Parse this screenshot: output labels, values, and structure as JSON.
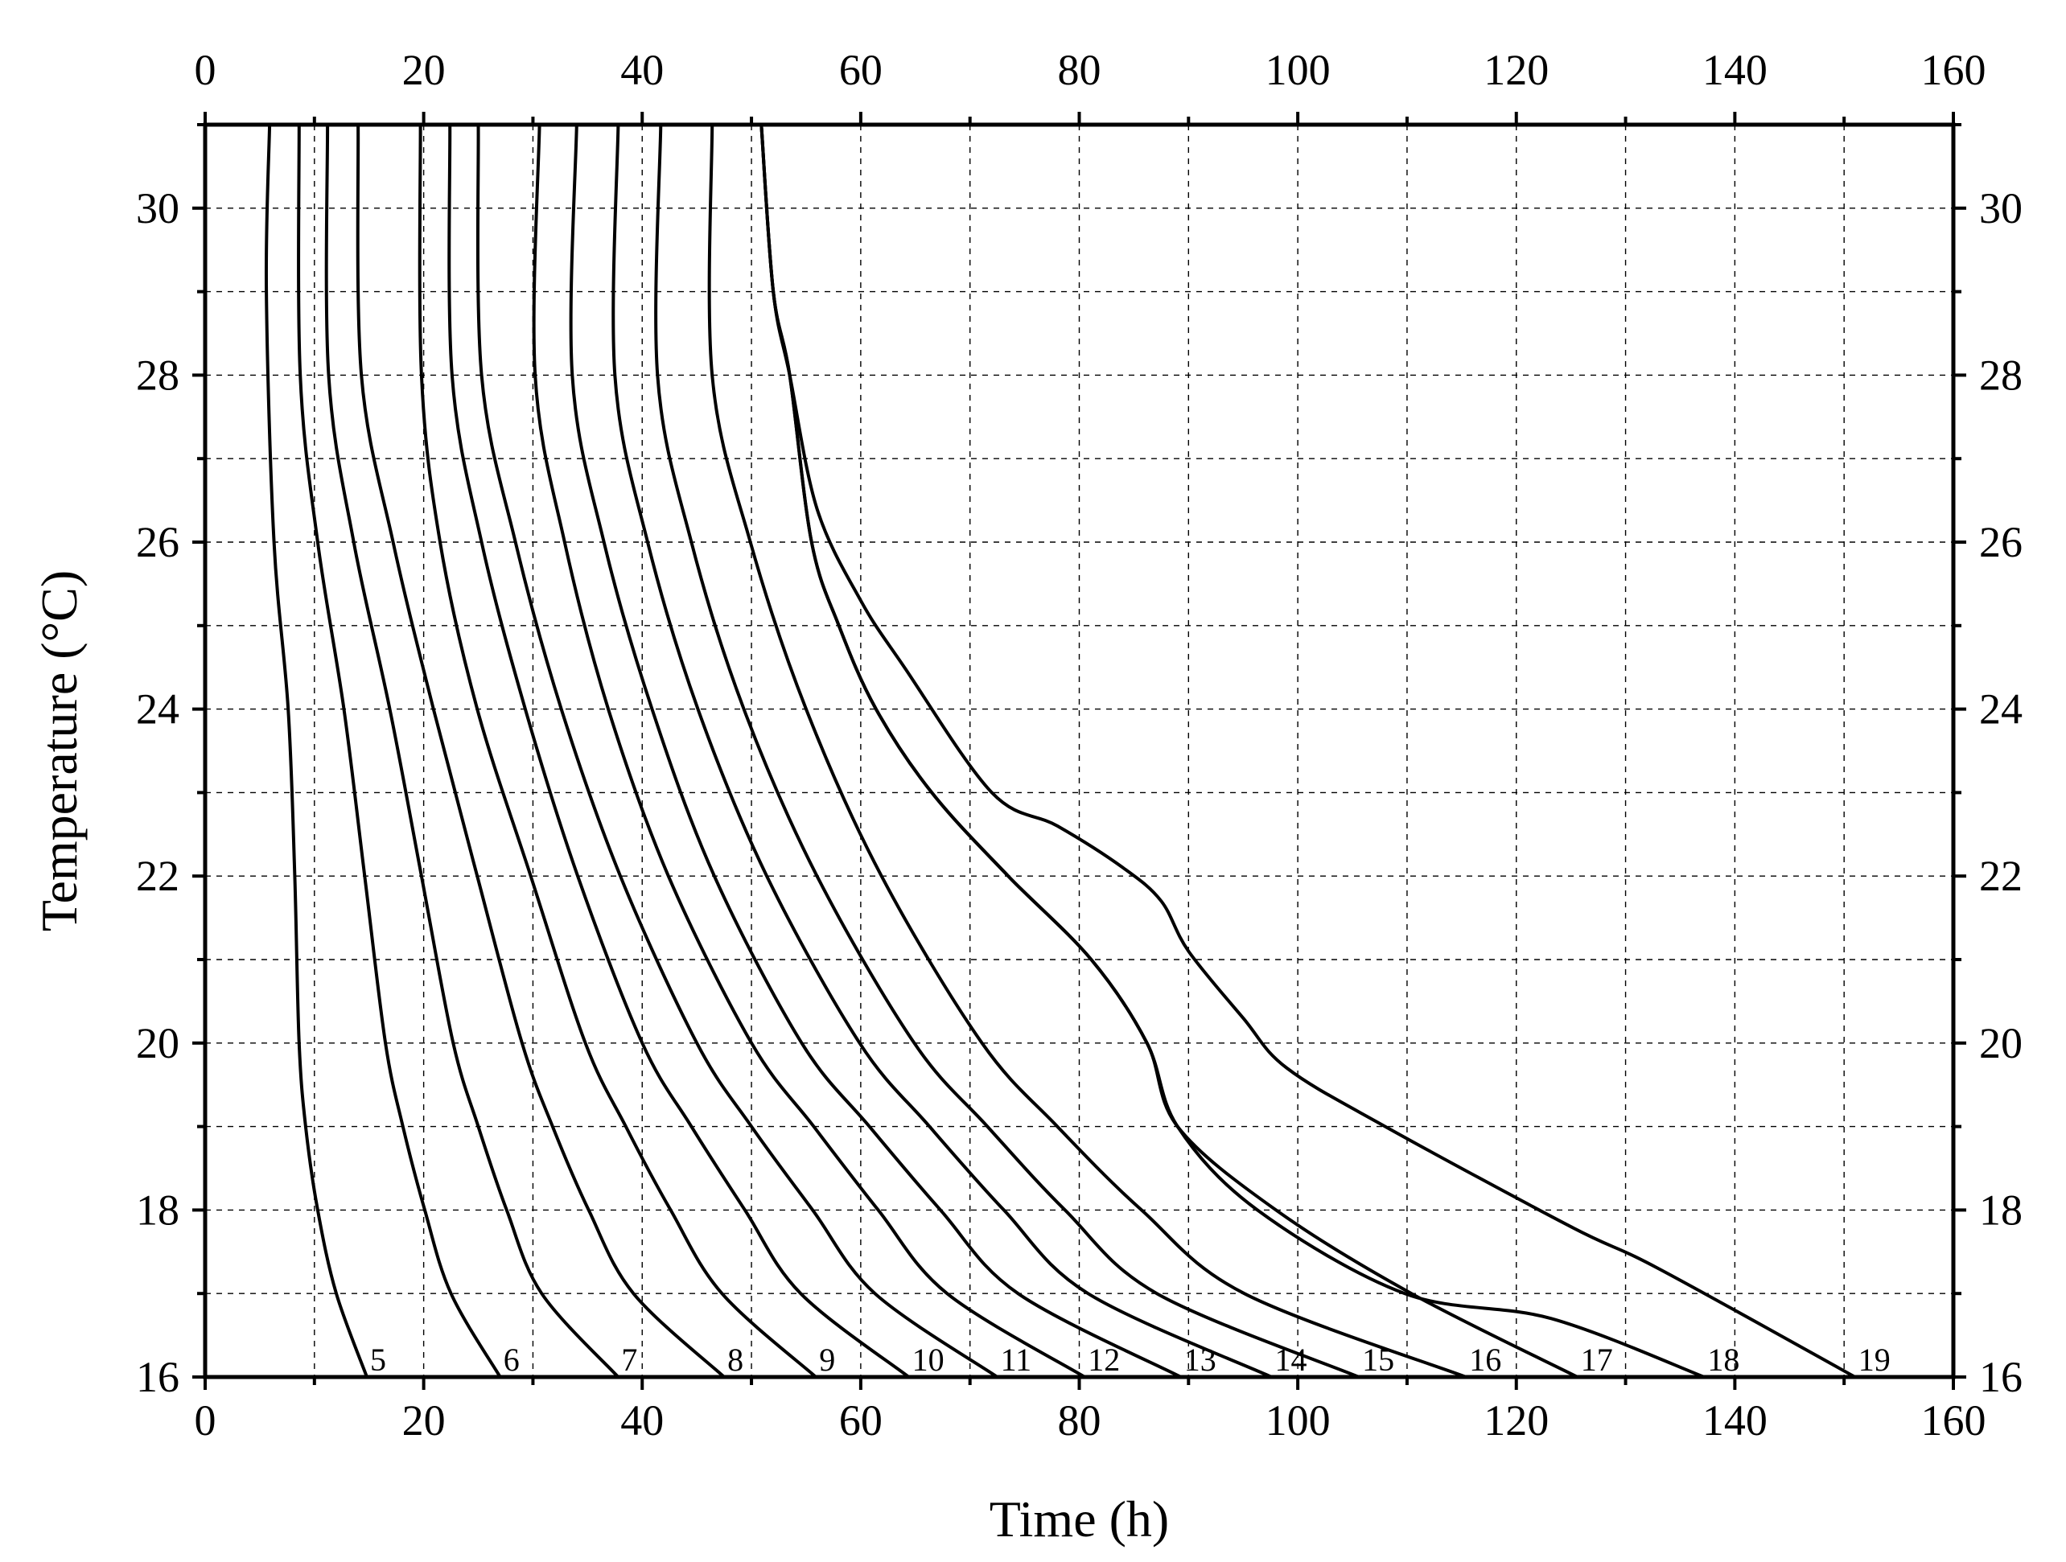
{
  "chart_data": {
    "type": "line",
    "xlabel": "Time (h)",
    "ylabel": "Temperature (°C)",
    "xlim": [
      0,
      160
    ],
    "ylim": [
      16,
      31
    ],
    "xticks": [
      0,
      20,
      40,
      60,
      80,
      100,
      120,
      140,
      160
    ],
    "yticks": [
      16,
      18,
      20,
      22,
      24,
      26,
      28,
      30
    ],
    "x_tick_labels": [
      "0",
      "20",
      "40",
      "60",
      "80",
      "100",
      "120",
      "140",
      "160"
    ],
    "y_tick_labels": [
      "16",
      "18",
      "20",
      "22",
      "24",
      "26",
      "28",
      "30"
    ],
    "grid": true,
    "series": [
      {
        "name": "5",
        "points": [
          [
            5.9,
            31
          ],
          [
            5.6,
            29
          ],
          [
            6.3,
            26
          ],
          [
            7.6,
            24
          ],
          [
            8.2,
            22
          ],
          [
            8.6,
            20
          ],
          [
            9.2,
            19
          ],
          [
            10.3,
            18
          ],
          [
            12.0,
            17
          ],
          [
            14.8,
            16
          ]
        ]
      },
      {
        "name": "6",
        "points": [
          [
            8.6,
            31
          ],
          [
            8.7,
            28
          ],
          [
            10.3,
            26
          ],
          [
            12.7,
            24
          ],
          [
            14.6,
            22
          ],
          [
            16.5,
            20
          ],
          [
            18.1,
            19
          ],
          [
            20.1,
            18
          ],
          [
            22.5,
            17
          ],
          [
            27.0,
            16
          ]
        ]
      },
      {
        "name": "7",
        "points": [
          [
            11.2,
            31
          ],
          [
            11.3,
            28
          ],
          [
            13.6,
            26
          ],
          [
            16.9,
            24
          ],
          [
            19.8,
            22
          ],
          [
            22.7,
            20
          ],
          [
            25.0,
            19
          ],
          [
            27.6,
            18
          ],
          [
            30.8,
            17
          ],
          [
            37.8,
            16
          ]
        ]
      },
      {
        "name": "8",
        "points": [
          [
            14.0,
            31
          ],
          [
            14.3,
            28
          ],
          [
            17.2,
            26
          ],
          [
            20.9,
            24
          ],
          [
            24.9,
            22
          ],
          [
            29.0,
            20
          ],
          [
            31.8,
            19
          ],
          [
            35.1,
            18
          ],
          [
            39.2,
            17
          ],
          [
            47.5,
            16
          ]
        ]
      },
      {
        "name": "9",
        "points": [
          [
            19.7,
            31
          ],
          [
            19.8,
            28
          ],
          [
            21.5,
            26
          ],
          [
            24.9,
            24
          ],
          [
            29.8,
            22
          ],
          [
            34.8,
            20
          ],
          [
            38.5,
            19
          ],
          [
            42.6,
            18
          ],
          [
            47.3,
            17
          ],
          [
            55.9,
            16
          ]
        ]
      },
      {
        "name": "10",
        "points": [
          [
            22.4,
            31
          ],
          [
            22.6,
            28
          ],
          [
            25.3,
            26
          ],
          [
            29.3,
            24
          ],
          [
            34.1,
            22
          ],
          [
            40.0,
            20
          ],
          [
            44.5,
            19
          ],
          [
            49.4,
            18
          ],
          [
            54.5,
            17
          ],
          [
            64.4,
            16
          ]
        ]
      },
      {
        "name": "11",
        "points": [
          [
            25.0,
            31
          ],
          [
            25.3,
            28
          ],
          [
            28.4,
            26
          ],
          [
            32.6,
            24
          ],
          [
            38.0,
            22
          ],
          [
            45.0,
            20
          ],
          [
            50.0,
            19
          ],
          [
            55.6,
            18
          ],
          [
            61.3,
            17
          ],
          [
            72.5,
            16
          ]
        ]
      },
      {
        "name": "12",
        "points": [
          [
            30.6,
            31
          ],
          [
            30.2,
            28
          ],
          [
            32.9,
            26
          ],
          [
            36.9,
            24
          ],
          [
            42.4,
            22
          ],
          [
            50.0,
            20
          ],
          [
            55.7,
            19
          ],
          [
            61.6,
            18
          ],
          [
            67.9,
            17
          ],
          [
            80.5,
            16
          ]
        ]
      },
      {
        "name": "13",
        "points": [
          [
            34.0,
            31
          ],
          [
            33.6,
            28
          ],
          [
            36.5,
            26
          ],
          [
            40.9,
            24
          ],
          [
            46.6,
            22
          ],
          [
            54.6,
            20
          ],
          [
            60.8,
            19
          ],
          [
            67.3,
            18
          ],
          [
            74.4,
            17
          ],
          [
            89.3,
            16
          ]
        ]
      },
      {
        "name": "14",
        "points": [
          [
            37.8,
            31
          ],
          [
            37.5,
            28
          ],
          [
            40.5,
            26
          ],
          [
            45.1,
            24
          ],
          [
            51.4,
            22
          ],
          [
            59.9,
            20
          ],
          [
            66.3,
            19
          ],
          [
            73.1,
            18
          ],
          [
            80.8,
            17
          ],
          [
            97.6,
            16
          ]
        ]
      },
      {
        "name": "15",
        "points": [
          [
            41.7,
            31
          ],
          [
            41.4,
            28
          ],
          [
            44.5,
            26
          ],
          [
            49.3,
            24
          ],
          [
            56.0,
            22
          ],
          [
            64.9,
            20
          ],
          [
            71.6,
            19
          ],
          [
            78.7,
            18
          ],
          [
            87.1,
            17
          ],
          [
            105.6,
            16
          ]
        ]
      },
      {
        "name": "16",
        "points": [
          [
            46.4,
            31
          ],
          [
            46.4,
            28
          ],
          [
            49.9,
            26
          ],
          [
            55.0,
            24
          ],
          [
            61.9,
            22
          ],
          [
            71.1,
            20
          ],
          [
            78.0,
            19
          ],
          [
            85.7,
            18
          ],
          [
            95.1,
            17
          ],
          [
            115.4,
            16
          ]
        ]
      },
      {
        "name": "17",
        "points": [
          [
            50.9,
            31
          ],
          [
            52.0,
            29
          ],
          [
            53.5,
            28
          ],
          [
            55.5,
            26
          ],
          [
            58.0,
            25
          ],
          [
            61.4,
            24
          ],
          [
            66.5,
            23
          ],
          [
            73.5,
            22
          ],
          [
            81.1,
            21
          ],
          [
            86.2,
            20
          ],
          [
            89.0,
            19
          ],
          [
            98.0,
            18
          ],
          [
            110.4,
            17
          ],
          [
            125.6,
            16
          ]
        ]
      },
      {
        "name": "18",
        "points": [
          [
            50.9,
            31
          ],
          [
            52.0,
            29
          ],
          [
            53.5,
            28
          ],
          [
            55.5,
            26
          ],
          [
            58.0,
            25
          ],
          [
            61.4,
            24
          ],
          [
            66.5,
            23
          ],
          [
            73.5,
            22
          ],
          [
            81.1,
            21
          ],
          [
            86.2,
            20
          ],
          [
            89.0,
            19
          ],
          [
            96.3,
            18
          ],
          [
            109.8,
            17
          ],
          [
            123.2,
            16.7
          ],
          [
            137.2,
            16
          ]
        ]
      },
      {
        "name": "19",
        "points": [
          [
            50.9,
            31
          ],
          [
            52.0,
            29
          ],
          [
            53.5,
            28
          ],
          [
            56.0,
            26.4
          ],
          [
            60.0,
            25.3
          ],
          [
            64.0,
            24.5
          ],
          [
            72.0,
            23.0
          ],
          [
            78.0,
            22.6
          ],
          [
            84.0,
            22.1
          ],
          [
            87.5,
            21.7
          ],
          [
            90.0,
            21.1
          ],
          [
            95.0,
            20.3
          ],
          [
            99.0,
            19.7
          ],
          [
            108.0,
            19.0
          ],
          [
            125.0,
            17.8
          ],
          [
            133.0,
            17.3
          ],
          [
            151.0,
            16
          ]
        ]
      }
    ]
  }
}
